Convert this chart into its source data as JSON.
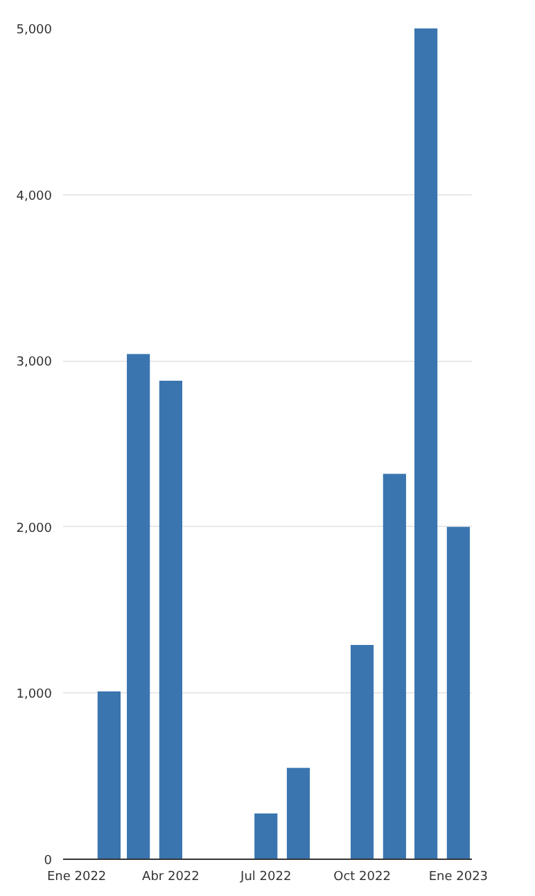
{
  "chart_data": {
    "type": "bar",
    "x": [
      "2022-02",
      "2022-03",
      "2022-04",
      "2022-05",
      "2022-06",
      "2022-07",
      "2022-08",
      "2022-09",
      "2022-10",
      "2022-11",
      "2022-12",
      "2023-01"
    ],
    "values": [
      1010,
      3040,
      2880,
      0,
      0,
      275,
      550,
      0,
      1290,
      2320,
      5000,
      2000
    ],
    "color": "#3a75b0",
    "xlim": [
      "2021-12-19",
      "2023-01-14"
    ],
    "xticks": [
      {
        "value": "2022-01",
        "label": "Ene 2022"
      },
      {
        "value": "2022-04",
        "label": "Abr 2022"
      },
      {
        "value": "2022-07",
        "label": "Jul 2022"
      },
      {
        "value": "2022-10",
        "label": "Oct 2022"
      },
      {
        "value": "2023-01",
        "label": "Ene 2023"
      }
    ],
    "ylim": [
      0,
      5000
    ],
    "yticks": [
      {
        "value": 0,
        "label": "0"
      },
      {
        "value": 1000,
        "label": "1,000"
      },
      {
        "value": 2000,
        "label": "2,000"
      },
      {
        "value": 3000,
        "label": "3,000"
      },
      {
        "value": 4000,
        "label": "4,000"
      },
      {
        "value": 5000,
        "label": "5,000"
      }
    ],
    "grid": "y"
  }
}
